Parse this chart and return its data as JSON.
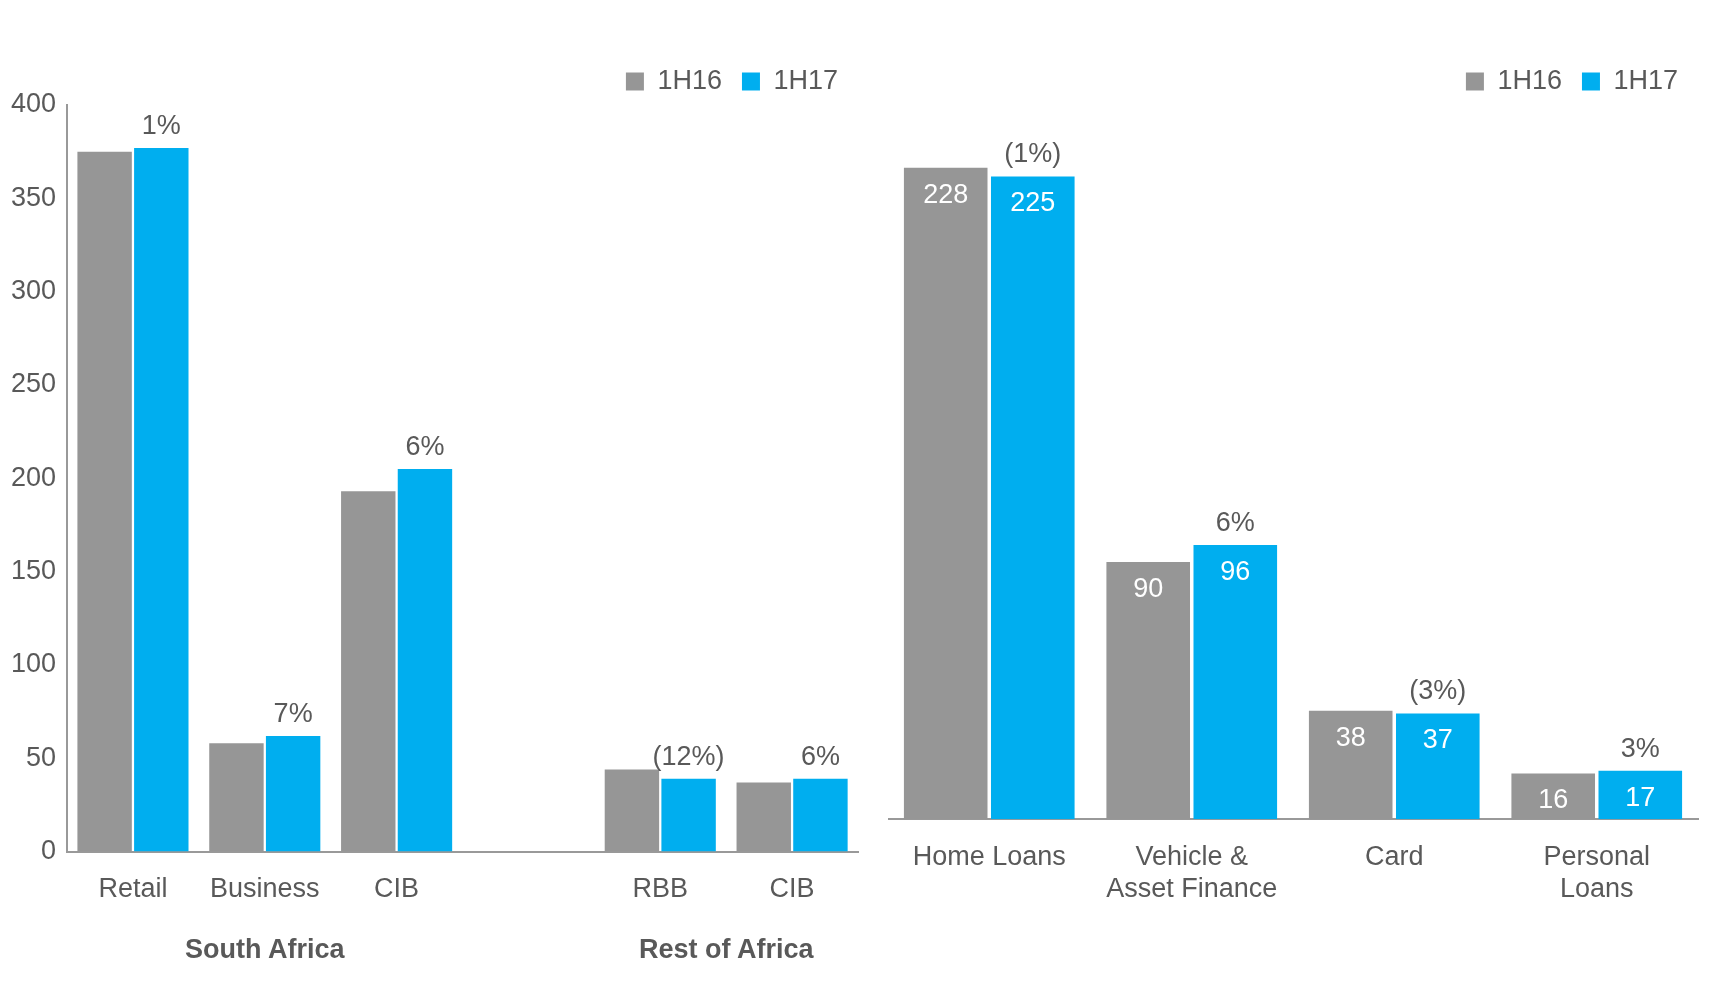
{
  "chart_data": [
    {
      "type": "bar",
      "categories": [
        "Retail",
        "Business",
        "CIB",
        null,
        "RBB",
        "CIB"
      ],
      "series": [
        {
          "name": "1H16",
          "color": "#969696",
          "values": [
            375,
            58,
            193,
            null,
            44,
            37
          ]
        },
        {
          "name": "1H17",
          "color": "#00aeef",
          "values": [
            377,
            62,
            205,
            null,
            39,
            39
          ]
        }
      ],
      "ylim": [
        0,
        400
      ],
      "yticks": [
        0,
        50,
        100,
        150,
        200,
        250,
        300,
        350,
        400
      ],
      "grid": false,
      "legend": "top right",
      "annotations": [
        "South Africa",
        "Rest of Africa",
        {
          "text": "1%",
          "x": "Retail",
          "y": 377
        },
        {
          "text": "7%",
          "x": "Business",
          "y": 62
        },
        {
          "text": "6%",
          "x": "CIB",
          "y": 205
        },
        {
          "text": "(12%)",
          "x": "RBB",
          "y": 39
        },
        {
          "text": "6%",
          "y": 39
        }
      ]
    },
    {
      "type": "bar",
      "categories": [
        "Home Loans",
        "Vehicle & Asset Finance",
        "Card",
        "Personal Loans"
      ],
      "series": [
        {
          "name": "1H16",
          "color": "#969696",
          "values": [
            228,
            90,
            38,
            16
          ]
        },
        {
          "name": "1H17",
          "color": "#00aeef",
          "values": [
            225,
            96,
            37,
            17
          ]
        }
      ],
      "tick_labels": "x",
      "grid": false,
      "legend": "top right",
      "data_labels": true,
      "annotations": [
        {
          "text": "(1%)",
          "x": "Home Loans",
          "y": 225
        },
        {
          "text": "6%",
          "x": "Vehicle & Asset Finance",
          "y": 96
        },
        {
          "text": "(3%)",
          "x": "Card",
          "y": 37
        },
        {
          "text": "3%",
          "x": "Personal Loans",
          "y": 17
        }
      ]
    }
  ]
}
